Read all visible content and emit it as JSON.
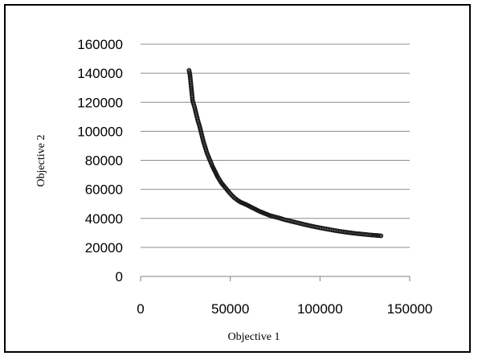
{
  "chart_data": {
    "type": "scatter",
    "title": "",
    "xlabel": "Objective 1",
    "ylabel": "Objective 2",
    "xlim": [
      0,
      150000
    ],
    "ylim": [
      0,
      160000
    ],
    "xticks": [
      "0",
      "50000",
      "100000",
      "150000"
    ],
    "yticks": [
      "0",
      "20000",
      "40000",
      "60000",
      "80000",
      "100000",
      "120000",
      "140000",
      "160000"
    ],
    "grid": "horizontal",
    "legend": "none",
    "marker_color": "#1a1a1a",
    "series": [
      {
        "x": [
          27000,
          27500,
          28000,
          28500,
          29000,
          30000,
          31000,
          32000,
          33000,
          34000,
          35000,
          36000,
          37000,
          38000,
          39000,
          40000,
          41000,
          42000,
          43000,
          44000,
          45000,
          46000,
          48000,
          50000,
          52000,
          54000,
          56000,
          58000,
          60000,
          62000,
          64000,
          66000,
          68000,
          70000,
          72000,
          75000,
          78000,
          80000,
          84000,
          88000,
          92000,
          96000,
          100000,
          104000,
          108000,
          112000,
          116000,
          120000,
          124000,
          128000,
          131000,
          134000
        ],
        "y": [
          142000,
          139000,
          133000,
          127000,
          121000,
          117000,
          112000,
          107000,
          103000,
          98000,
          93000,
          89000,
          85000,
          82000,
          79000,
          76000,
          73500,
          71000,
          68500,
          66500,
          64500,
          63000,
          60000,
          57000,
          54500,
          52500,
          51000,
          50000,
          48800,
          47500,
          46300,
          45000,
          44000,
          43000,
          42000,
          41000,
          40000,
          39200,
          38000,
          36800,
          35600,
          34500,
          33500,
          32600,
          31700,
          30900,
          30200,
          29600,
          29100,
          28600,
          28300,
          28000
        ]
      }
    ]
  }
}
